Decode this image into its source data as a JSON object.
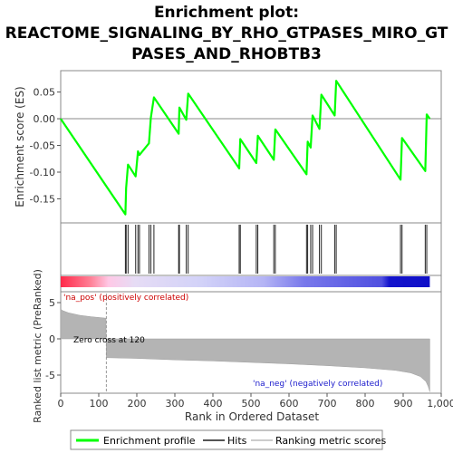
{
  "chart_data": {
    "type": "line",
    "title_lines": [
      "Enrichment plot:",
      "REACTOME_SIGNALING_BY_RHO_GTPASES_MIRO_GT",
      "PASES_AND_RHOBTB3"
    ],
    "es_panel": {
      "ylabel": "Enrichment score (ES)",
      "ylim": [
        -0.195,
        0.09
      ],
      "yticks": [
        0.05,
        0.0,
        -0.05,
        -0.1,
        -0.15
      ],
      "ytick_labels": [
        "0.05",
        "0.00",
        "-0.05",
        "-0.10",
        "-0.15"
      ],
      "series": [
        {
          "name": "Enrichment profile",
          "color": "#00ff00",
          "x": [
            0,
            170,
            172,
            177,
            197,
            203,
            207,
            232,
            237,
            245,
            310,
            312,
            330,
            335,
            469,
            472,
            514,
            518,
            560,
            564,
            646,
            649,
            657,
            662,
            680,
            685,
            720,
            724,
            893,
            897,
            958,
            962,
            970
          ],
          "y": [
            0.0,
            -0.179,
            -0.13,
            -0.086,
            -0.108,
            -0.061,
            -0.068,
            -0.046,
            0.002,
            0.04,
            -0.028,
            0.021,
            -0.002,
            0.047,
            -0.093,
            -0.038,
            -0.083,
            -0.032,
            -0.077,
            -0.02,
            -0.104,
            -0.043,
            -0.054,
            0.006,
            -0.019,
            0.045,
            0.006,
            0.071,
            -0.114,
            -0.036,
            -0.098,
            0.008,
            0.0
          ]
        }
      ]
    },
    "hits": [
      170,
      172,
      177,
      197,
      203,
      207,
      232,
      237,
      245,
      310,
      312,
      330,
      335,
      469,
      472,
      514,
      518,
      560,
      564,
      646,
      649,
      657,
      662,
      680,
      685,
      720,
      724,
      893,
      897,
      958,
      962
    ],
    "ranked_panel": {
      "ylabel": "Ranked list metric (PreRanked)",
      "ylim": [
        -7.5,
        6.5
      ],
      "yticks": [
        5,
        0,
        -5
      ],
      "ytick_labels": [
        "5",
        "0",
        "-5"
      ],
      "metric_points": [
        [
          0,
          4.1
        ],
        [
          5,
          3.9
        ],
        [
          20,
          3.6
        ],
        [
          50,
          3.25
        ],
        [
          80,
          3.05
        ],
        [
          110,
          2.9
        ],
        [
          119,
          2.85
        ],
        [
          120,
          -2.6
        ],
        [
          200,
          -2.7
        ],
        [
          300,
          -2.9
        ],
        [
          400,
          -3.05
        ],
        [
          500,
          -3.25
        ],
        [
          600,
          -3.45
        ],
        [
          700,
          -3.7
        ],
        [
          800,
          -4.0
        ],
        [
          880,
          -4.35
        ],
        [
          920,
          -4.7
        ],
        [
          945,
          -5.2
        ],
        [
          960,
          -5.9
        ],
        [
          966,
          -6.6
        ],
        [
          970,
          -7.3
        ]
      ],
      "annotation_pos": "'na_pos' (positively correlated)",
      "annotation_neg": "'na_neg' (negatively correlated)",
      "zero_cross_label": "Zero cross at 120",
      "zero_cross_x": 120
    },
    "xlabel": "Rank in Ordered Dataset",
    "xlim": [
      0,
      1000
    ],
    "xticks": [
      0,
      100,
      200,
      300,
      400,
      500,
      600,
      700,
      800,
      900,
      1000
    ],
    "xtick_labels": [
      "0",
      "100",
      "200",
      "300",
      "400",
      "500",
      "600",
      "700",
      "800",
      "900",
      "1,000"
    ],
    "total_ranks": 970,
    "legend": [
      {
        "label": "Enrichment profile",
        "color": "#00ff00"
      },
      {
        "label": "Hits",
        "color": "#555555"
      },
      {
        "label": "Ranking metric scores",
        "color": "#cccccc"
      }
    ]
  }
}
